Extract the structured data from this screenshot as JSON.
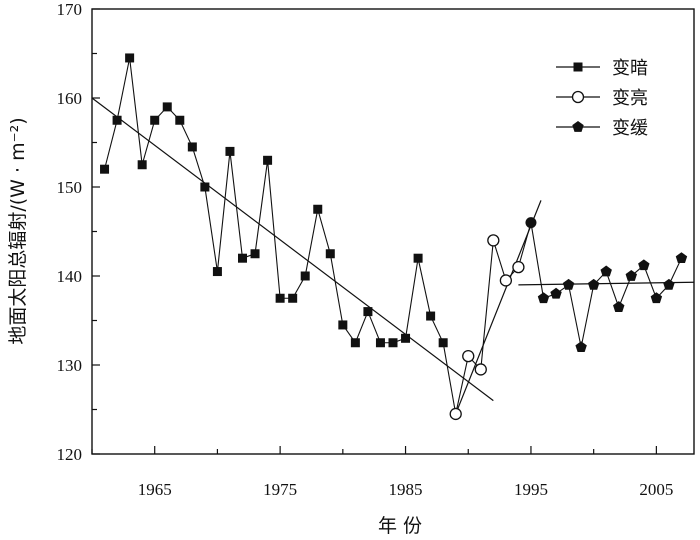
{
  "chart_data": {
    "type": "line",
    "xlabel": "年 份",
    "ylabel": "地面太阳总辐射/(W · m⁻²)",
    "xlim": [
      1960,
      2008
    ],
    "ylim": [
      120,
      170
    ],
    "xticks": [
      1965,
      1975,
      1985,
      1995,
      2005
    ],
    "yticks": [
      120,
      130,
      140,
      150,
      160,
      170
    ],
    "legend_position": "top-right",
    "grid": false,
    "series": [
      {
        "name": "变暗",
        "marker": "square-filled",
        "x": [
          1961,
          1962,
          1963,
          1964,
          1965,
          1966,
          1967,
          1968,
          1969,
          1970,
          1971,
          1972,
          1973,
          1974,
          1975,
          1976,
          1977,
          1978,
          1979,
          1980,
          1981,
          1982,
          1983,
          1984,
          1985,
          1986,
          1987,
          1988
        ],
        "y": [
          152,
          157.5,
          164.5,
          152.5,
          157.5,
          159,
          157.5,
          154.5,
          150,
          140.5,
          154,
          142,
          142.5,
          153,
          137.5,
          137.5,
          140,
          147.5,
          142.5,
          134.5,
          132.5,
          136,
          132.5,
          132.5,
          133,
          142,
          135.5,
          132.5
        ]
      },
      {
        "name": "变亮",
        "marker": "circle-open",
        "x": [
          1989,
          1990,
          1991,
          1992,
          1993,
          1994,
          1995
        ],
        "y": [
          124.5,
          131,
          129.5,
          144,
          139.5,
          141,
          146
        ]
      },
      {
        "name": "变缓",
        "marker": "pentagon-filled",
        "x": [
          1995,
          1996,
          1997,
          1998,
          1999,
          2000,
          2001,
          2002,
          2003,
          2004,
          2005,
          2006,
          2007
        ],
        "y": [
          146,
          137.5,
          138,
          139,
          132,
          139,
          140.5,
          136.5,
          140,
          141.2,
          137.5,
          139,
          142
        ]
      }
    ],
    "trendlines": [
      {
        "series": "变暗",
        "x": [
          1960,
          1992
        ],
        "y": [
          160,
          126
        ]
      },
      {
        "series": "变亮",
        "x": [
          1989,
          1995.8
        ],
        "y": [
          124.5,
          148.5
        ]
      },
      {
        "series": "变缓",
        "x": [
          1994,
          2008
        ],
        "y": [
          139,
          139.3
        ]
      }
    ]
  }
}
